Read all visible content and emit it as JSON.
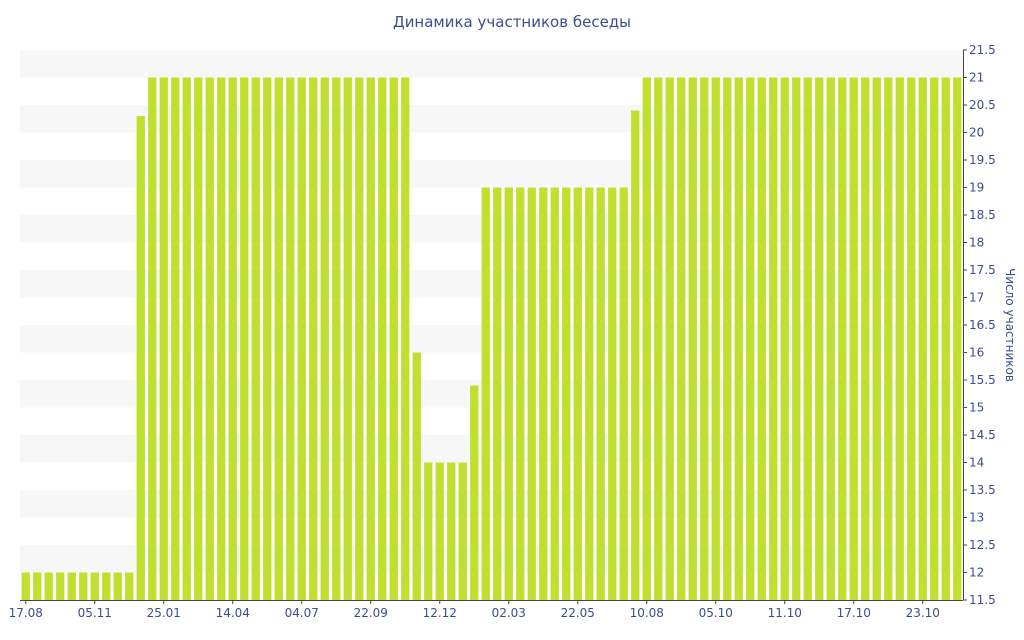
{
  "chart_data": {
    "type": "bar",
    "title": "Динамика участников беседы",
    "xlabel": "",
    "ylabel": "Число участников",
    "ylim": [
      11.5,
      21.5
    ],
    "y_axis_side": "right",
    "y_ticks": [
      "11.5",
      "12",
      "12.5",
      "13",
      "13.5",
      "14",
      "14.5",
      "15",
      "15.5",
      "16",
      "16.5",
      "17",
      "17.5",
      "18",
      "18.5",
      "19",
      "19.5",
      "20",
      "20.5",
      "21",
      "21.5"
    ],
    "x_tick_labels": [
      "17.08",
      "05.11",
      "25.01",
      "14.04",
      "04.07",
      "22.09",
      "12.12",
      "02.03",
      "22.05",
      "10.08",
      "05.10",
      "11.10",
      "17.10",
      "23.10"
    ],
    "x_tick_bar_index": [
      0,
      6,
      12,
      18,
      24,
      30,
      36,
      42,
      48,
      54,
      60,
      66,
      72,
      78
    ],
    "grid": "horizontal-bands",
    "colors": {
      "bar": "#bfe02f",
      "band": "#f7f7f7",
      "text": "#3a4e8c",
      "axis": "#444444"
    },
    "series": [
      {
        "values": [
          12,
          12,
          12,
          12,
          12,
          12,
          12,
          12,
          12,
          12,
          20.3,
          21,
          21,
          21,
          21,
          21,
          21,
          21,
          21,
          21,
          21,
          21,
          21,
          21,
          21,
          21,
          21,
          21,
          21,
          21,
          21,
          21,
          21,
          21,
          16,
          14,
          14,
          14,
          14,
          15.4,
          19,
          19,
          19,
          19,
          19,
          19,
          19,
          19,
          19,
          19,
          19,
          19,
          19,
          20.4,
          21,
          21,
          21,
          21,
          21,
          21,
          21,
          21,
          21,
          21,
          21,
          21,
          21,
          21,
          21,
          21,
          21,
          21,
          21,
          21,
          21,
          21,
          21,
          21,
          21,
          21,
          21,
          21
        ]
      }
    ]
  }
}
